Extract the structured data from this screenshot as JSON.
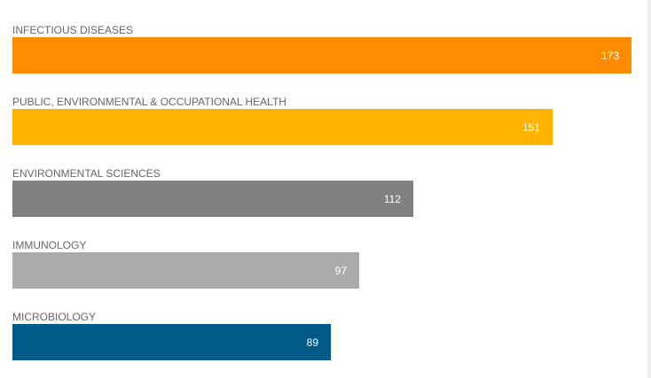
{
  "chart_data": {
    "type": "bar",
    "orientation": "horizontal",
    "categories": [
      "INFECTIOUS DISEASES",
      "PUBLIC, ENVIRONMENTAL & OCCUPATIONAL HEALTH",
      "ENVIRONMENTAL SCIENCES",
      "IMMUNOLOGY",
      "MICROBIOLOGY"
    ],
    "values": [
      173,
      151,
      112,
      97,
      89
    ],
    "colors": [
      "#ff8c00",
      "#ffb400",
      "#808080",
      "#aaaaaa",
      "#005a87"
    ],
    "xlim": [
      0,
      173
    ],
    "grid": false,
    "legend": "none"
  }
}
